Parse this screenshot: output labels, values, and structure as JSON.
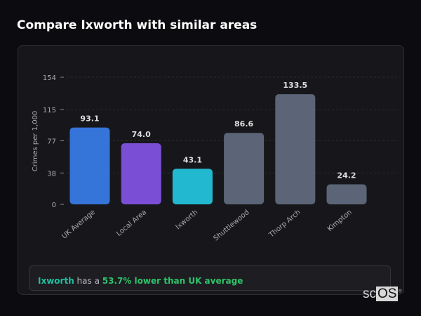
{
  "title": "Compare Ixworth with similar areas",
  "chart_data": {
    "type": "bar",
    "categories": [
      "UK Average",
      "Local Area",
      "Ixworth",
      "Shuttlewood",
      "Thorp Arch",
      "Kimpton"
    ],
    "values": [
      93.1,
      74.0,
      43.1,
      86.6,
      133.5,
      24.2
    ],
    "data_labels": [
      "93.1",
      "74.0",
      "43.1",
      "86.6",
      "133.5",
      "24.2"
    ],
    "colors": [
      "#3574d9",
      "#7a4fd6",
      "#22b8d0",
      "#5b6577",
      "#5b6577",
      "#5b6577"
    ],
    "ylabel": "Crimes per 1,000",
    "yticks": [
      0,
      38,
      77,
      115,
      154
    ],
    "ylim": [
      0,
      154
    ],
    "grid": true
  },
  "summary": {
    "area": "Ixworth",
    "middle": " has a ",
    "highlight": "53.7% lower than UK average",
    "area_color": "#1fc0a0",
    "highlight_color": "#2ec46a"
  },
  "logo": {
    "text_a": "sc",
    "text_b": "OS",
    "mark": "®"
  }
}
